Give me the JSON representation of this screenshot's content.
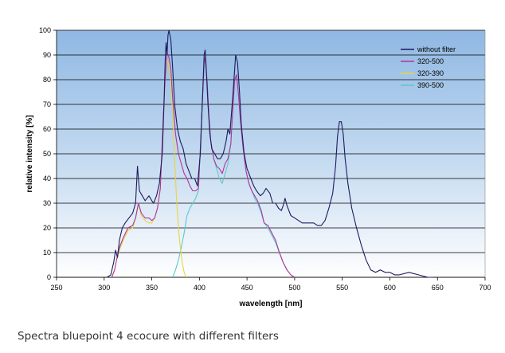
{
  "caption": "Spectra bluepoint 4 ecocure with different filters",
  "chart_data": {
    "type": "line",
    "title": "",
    "xlabel": "wavelength [nm]",
    "ylabel": "relative intensity [%]",
    "xlim": [
      250,
      700
    ],
    "ylim": [
      0,
      100
    ],
    "x_ticks": [
      "250",
      "300",
      "350",
      "400",
      "450",
      "500",
      "550",
      "600",
      "650",
      "700"
    ],
    "y_ticks": [
      "0",
      "10",
      "20",
      "30",
      "40",
      "50",
      "60",
      "70",
      "80",
      "90",
      "100"
    ],
    "grid": "horizontal",
    "legend_position": "top-right",
    "background": "blue-gradient",
    "series": [
      {
        "name": "without filter",
        "color": "#1f1a5e",
        "points": [
          [
            303,
            0
          ],
          [
            307,
            1
          ],
          [
            310,
            6
          ],
          [
            312,
            11
          ],
          [
            314,
            8
          ],
          [
            316,
            15
          ],
          [
            319,
            20
          ],
          [
            322,
            22
          ],
          [
            326,
            24
          ],
          [
            330,
            26
          ],
          [
            333,
            30
          ],
          [
            335,
            45
          ],
          [
            337,
            35
          ],
          [
            340,
            33
          ],
          [
            343,
            31
          ],
          [
            347,
            33
          ],
          [
            350,
            31
          ],
          [
            352,
            30
          ],
          [
            355,
            33
          ],
          [
            358,
            38
          ],
          [
            361,
            50
          ],
          [
            363,
            72
          ],
          [
            364,
            87
          ],
          [
            365,
            95
          ],
          [
            366,
            90
          ],
          [
            367,
            98
          ],
          [
            368,
            100
          ],
          [
            370,
            96
          ],
          [
            372,
            84
          ],
          [
            374,
            70
          ],
          [
            377,
            60
          ],
          [
            380,
            55
          ],
          [
            383,
            52
          ],
          [
            386,
            46
          ],
          [
            389,
            43
          ],
          [
            392,
            40
          ],
          [
            395,
            40
          ],
          [
            398,
            37
          ],
          [
            401,
            50
          ],
          [
            403,
            70
          ],
          [
            405,
            90
          ],
          [
            406,
            92
          ],
          [
            407,
            86
          ],
          [
            409,
            70
          ],
          [
            411,
            58
          ],
          [
            413,
            52
          ],
          [
            416,
            50
          ],
          [
            419,
            48
          ],
          [
            422,
            48
          ],
          [
            425,
            50
          ],
          [
            428,
            55
          ],
          [
            430,
            60
          ],
          [
            432,
            58
          ],
          [
            435,
            73
          ],
          [
            437,
            84
          ],
          [
            438,
            90
          ],
          [
            440,
            87
          ],
          [
            442,
            76
          ],
          [
            444,
            62
          ],
          [
            447,
            50
          ],
          [
            450,
            44
          ],
          [
            454,
            40
          ],
          [
            457,
            37
          ],
          [
            460,
            35
          ],
          [
            464,
            33
          ],
          [
            467,
            34
          ],
          [
            470,
            36
          ],
          [
            474,
            34
          ],
          [
            477,
            30
          ],
          [
            480,
            30
          ],
          [
            483,
            28
          ],
          [
            486,
            27
          ],
          [
            488,
            29
          ],
          [
            490,
            32
          ],
          [
            492,
            29
          ],
          [
            496,
            25
          ],
          [
            500,
            24
          ],
          [
            504,
            23
          ],
          [
            508,
            22
          ],
          [
            512,
            22
          ],
          [
            516,
            22
          ],
          [
            520,
            22
          ],
          [
            524,
            21
          ],
          [
            528,
            21
          ],
          [
            532,
            23
          ],
          [
            536,
            28
          ],
          [
            540,
            34
          ],
          [
            543,
            45
          ],
          [
            545,
            57
          ],
          [
            547,
            63
          ],
          [
            549,
            63
          ],
          [
            551,
            58
          ],
          [
            553,
            48
          ],
          [
            556,
            38
          ],
          [
            560,
            28
          ],
          [
            565,
            20
          ],
          [
            570,
            13
          ],
          [
            575,
            7
          ],
          [
            580,
            3
          ],
          [
            585,
            2
          ],
          [
            590,
            3
          ],
          [
            595,
            2
          ],
          [
            600,
            2
          ],
          [
            605,
            1
          ],
          [
            610,
            1
          ],
          [
            620,
            2
          ],
          [
            630,
            1
          ],
          [
            640,
            0
          ],
          [
            645,
            0
          ]
        ]
      },
      {
        "name": "320-500",
        "color": "#b0359b",
        "points": [
          [
            308,
            0
          ],
          [
            311,
            3
          ],
          [
            313,
            7
          ],
          [
            316,
            12
          ],
          [
            320,
            16
          ],
          [
            325,
            20
          ],
          [
            330,
            21
          ],
          [
            333,
            24
          ],
          [
            336,
            30
          ],
          [
            339,
            26
          ],
          [
            343,
            24
          ],
          [
            347,
            24
          ],
          [
            350,
            23
          ],
          [
            353,
            24
          ],
          [
            356,
            28
          ],
          [
            359,
            36
          ],
          [
            361,
            55
          ],
          [
            363,
            73
          ],
          [
            364,
            80
          ],
          [
            366,
            91
          ],
          [
            368,
            89
          ],
          [
            370,
            84
          ],
          [
            372,
            72
          ],
          [
            375,
            58
          ],
          [
            378,
            50
          ],
          [
            381,
            46
          ],
          [
            384,
            42
          ],
          [
            387,
            40
          ],
          [
            390,
            37
          ],
          [
            393,
            35
          ],
          [
            396,
            35
          ],
          [
            399,
            36
          ],
          [
            401,
            52
          ],
          [
            403,
            70
          ],
          [
            405,
            87
          ],
          [
            406,
            89
          ],
          [
            408,
            80
          ],
          [
            410,
            65
          ],
          [
            412,
            55
          ],
          [
            415,
            48
          ],
          [
            418,
            45
          ],
          [
            421,
            44
          ],
          [
            424,
            42
          ],
          [
            427,
            46
          ],
          [
            430,
            48
          ],
          [
            433,
            54
          ],
          [
            435,
            68
          ],
          [
            437,
            80
          ],
          [
            439,
            82
          ],
          [
            441,
            74
          ],
          [
            443,
            64
          ],
          [
            446,
            52
          ],
          [
            449,
            43
          ],
          [
            452,
            38
          ],
          [
            455,
            35
          ],
          [
            458,
            33
          ],
          [
            461,
            31
          ],
          [
            465,
            27
          ],
          [
            468,
            22
          ],
          [
            472,
            21
          ],
          [
            476,
            18
          ],
          [
            480,
            15
          ],
          [
            484,
            10
          ],
          [
            488,
            6
          ],
          [
            492,
            3
          ],
          [
            496,
            1
          ],
          [
            500,
            0
          ]
        ]
      },
      {
        "name": "320-390",
        "color": "#e8d63c",
        "points": [
          [
            308,
            0
          ],
          [
            311,
            3
          ],
          [
            313,
            7
          ],
          [
            316,
            11
          ],
          [
            320,
            15
          ],
          [
            325,
            19
          ],
          [
            330,
            20
          ],
          [
            333,
            24
          ],
          [
            336,
            30
          ],
          [
            339,
            25
          ],
          [
            343,
            23
          ],
          [
            347,
            22
          ],
          [
            350,
            22
          ],
          [
            353,
            24
          ],
          [
            356,
            28
          ],
          [
            359,
            36
          ],
          [
            361,
            55
          ],
          [
            363,
            73
          ],
          [
            364,
            80
          ],
          [
            366,
            88
          ],
          [
            368,
            86
          ],
          [
            370,
            80
          ],
          [
            372,
            65
          ],
          [
            374,
            48
          ],
          [
            376,
            32
          ],
          [
            378,
            20
          ],
          [
            380,
            12
          ],
          [
            382,
            6
          ],
          [
            384,
            2
          ],
          [
            386,
            0
          ]
        ]
      },
      {
        "name": "390-500",
        "color": "#5ec9c8",
        "points": [
          [
            372,
            0
          ],
          [
            375,
            3
          ],
          [
            378,
            7
          ],
          [
            381,
            12
          ],
          [
            384,
            18
          ],
          [
            387,
            25
          ],
          [
            390,
            28
          ],
          [
            393,
            30
          ],
          [
            396,
            32
          ],
          [
            399,
            35
          ],
          [
            401,
            52
          ],
          [
            403,
            70
          ],
          [
            405,
            87
          ],
          [
            406,
            88
          ],
          [
            408,
            80
          ],
          [
            410,
            65
          ],
          [
            412,
            55
          ],
          [
            415,
            48
          ],
          [
            418,
            44
          ],
          [
            421,
            40
          ],
          [
            424,
            38
          ],
          [
            427,
            42
          ],
          [
            430,
            46
          ],
          [
            433,
            54
          ],
          [
            435,
            68
          ],
          [
            437,
            80
          ],
          [
            439,
            81
          ],
          [
            441,
            74
          ],
          [
            443,
            64
          ],
          [
            446,
            52
          ],
          [
            449,
            43
          ],
          [
            452,
            38
          ],
          [
            455,
            35
          ],
          [
            458,
            32
          ],
          [
            461,
            30
          ],
          [
            465,
            26
          ],
          [
            468,
            22
          ],
          [
            472,
            20
          ],
          [
            476,
            17
          ],
          [
            480,
            14
          ],
          [
            484,
            10
          ],
          [
            488,
            6
          ],
          [
            492,
            3
          ],
          [
            496,
            1
          ],
          [
            500,
            0
          ]
        ]
      }
    ]
  }
}
